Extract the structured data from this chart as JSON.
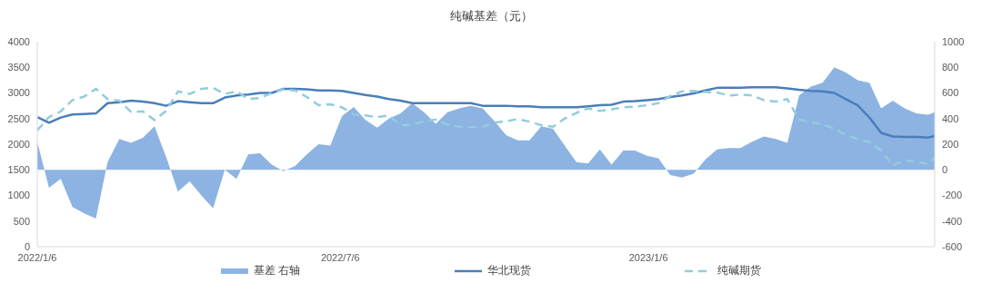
{
  "chart_data": {
    "type": "line",
    "title": "纯碱基差（元）",
    "x": [
      "2022-01-06",
      "2022-01-13",
      "2022-01-20",
      "2022-01-27",
      "2022-02-03",
      "2022-02-10",
      "2022-02-17",
      "2022-02-24",
      "2022-03-03",
      "2022-03-10",
      "2022-03-17",
      "2022-03-24",
      "2022-03-31",
      "2022-04-07",
      "2022-04-14",
      "2022-04-21",
      "2022-04-28",
      "2022-05-05",
      "2022-05-12",
      "2022-05-19",
      "2022-05-26",
      "2022-06-02",
      "2022-06-09",
      "2022-06-16",
      "2022-06-23",
      "2022-06-30",
      "2022-07-07",
      "2022-07-14",
      "2022-07-21",
      "2022-07-28",
      "2022-08-04",
      "2022-08-11",
      "2022-08-18",
      "2022-08-25",
      "2022-09-01",
      "2022-09-08",
      "2022-09-15",
      "2022-09-22",
      "2022-09-29",
      "2022-10-06",
      "2022-10-13",
      "2022-10-20",
      "2022-10-27",
      "2022-11-03",
      "2022-11-10",
      "2022-11-17",
      "2022-11-24",
      "2022-12-01",
      "2022-12-08",
      "2022-12-15",
      "2022-12-22",
      "2022-12-29",
      "2023-01-05",
      "2023-01-12",
      "2023-01-19",
      "2023-01-26",
      "2023-02-02",
      "2023-02-09",
      "2023-02-16",
      "2023-02-23",
      "2023-03-02",
      "2023-03-09",
      "2023-03-16",
      "2023-03-23",
      "2023-03-30",
      "2023-04-06",
      "2023-04-13",
      "2023-04-20",
      "2023-04-27",
      "2023-05-04",
      "2023-05-11",
      "2023-05-18",
      "2023-05-25",
      "2023-06-01",
      "2023-06-08",
      "2023-06-15",
      "2023-06-22",
      "2023-06-26"
    ],
    "series": [
      {
        "name": "基差 右轴",
        "type": "area",
        "axis": "y2",
        "color": "#8db3e2",
        "values": [
          220,
          -140,
          -70,
          -290,
          -340,
          -380,
          60,
          240,
          210,
          250,
          340,
          100,
          -170,
          -90,
          -200,
          -300,
          0,
          -70,
          120,
          130,
          40,
          -10,
          30,
          120,
          200,
          190,
          420,
          490,
          390,
          330,
          400,
          440,
          520,
          450,
          360,
          450,
          480,
          500,
          480,
          380,
          270,
          230,
          230,
          340,
          320,
          190,
          60,
          50,
          160,
          40,
          150,
          150,
          110,
          90,
          -40,
          -60,
          -30,
          80,
          160,
          170,
          170,
          220,
          260,
          240,
          210,
          580,
          650,
          680,
          800,
          760,
          700,
          680,
          480,
          540,
          480,
          440,
          430,
          450
        ]
      },
      {
        "name": "华北现货",
        "type": "line",
        "color": "#4a7ebb",
        "line_style": "solid",
        "values": [
          2530,
          2420,
          2520,
          2580,
          2590,
          2600,
          2800,
          2820,
          2850,
          2830,
          2800,
          2750,
          2840,
          2820,
          2800,
          2800,
          2910,
          2950,
          2970,
          3000,
          3000,
          3080,
          3080,
          3070,
          3050,
          3050,
          3040,
          3000,
          2960,
          2930,
          2880,
          2850,
          2800,
          2800,
          2800,
          2800,
          2800,
          2800,
          2750,
          2750,
          2750,
          2740,
          2740,
          2720,
          2720,
          2720,
          2720,
          2740,
          2760,
          2770,
          2830,
          2840,
          2860,
          2880,
          2920,
          2950,
          2990,
          3050,
          3100,
          3100,
          3100,
          3110,
          3110,
          3110,
          3090,
          3060,
          3040,
          3030,
          3000,
          2880,
          2760,
          2520,
          2220,
          2150,
          2140,
          2140,
          2130,
          2160
        ]
      },
      {
        "name": "纯碱期货",
        "type": "line",
        "color": "#92cddc",
        "line_style": "dashed",
        "values": [
          2270,
          2530,
          2640,
          2860,
          2930,
          3080,
          2880,
          2850,
          2630,
          2640,
          2470,
          2650,
          3030,
          2980,
          3080,
          3100,
          2980,
          3030,
          2880,
          2900,
          3000,
          3070,
          3050,
          2920,
          2760,
          2780,
          2720,
          2580,
          2560,
          2530,
          2560,
          2370,
          2380,
          2450,
          2480,
          2380,
          2340,
          2330,
          2340,
          2420,
          2450,
          2490,
          2440,
          2370,
          2340,
          2500,
          2610,
          2700,
          2650,
          2680,
          2720,
          2730,
          2760,
          2800,
          2940,
          3030,
          3040,
          3020,
          3010,
          2950,
          2970,
          2950,
          2860,
          2830,
          2880,
          2480,
          2430,
          2390,
          2300,
          2180,
          2100,
          2040,
          1880,
          1580,
          1690,
          1650,
          1620,
          1730
        ]
      }
    ],
    "xlim": [
      "2022-01-06",
      "2023-06-26"
    ],
    "xticks": [
      {
        "value": "2022-01-06",
        "label": "2022/1/6"
      },
      {
        "value": "2022-07-06",
        "label": "2022/7/6"
      },
      {
        "value": "2023-01-06",
        "label": "2023/1/6"
      }
    ],
    "ylim": [
      0,
      4000
    ],
    "yticks": [
      0,
      500,
      1000,
      1500,
      2000,
      2500,
      3000,
      3500,
      4000
    ],
    "y2lim": [
      -600,
      1000
    ],
    "y2ticks": [
      -600,
      -400,
      -200,
      0,
      200,
      400,
      600,
      800,
      1000
    ],
    "legend": "bottom",
    "marker": "none"
  }
}
